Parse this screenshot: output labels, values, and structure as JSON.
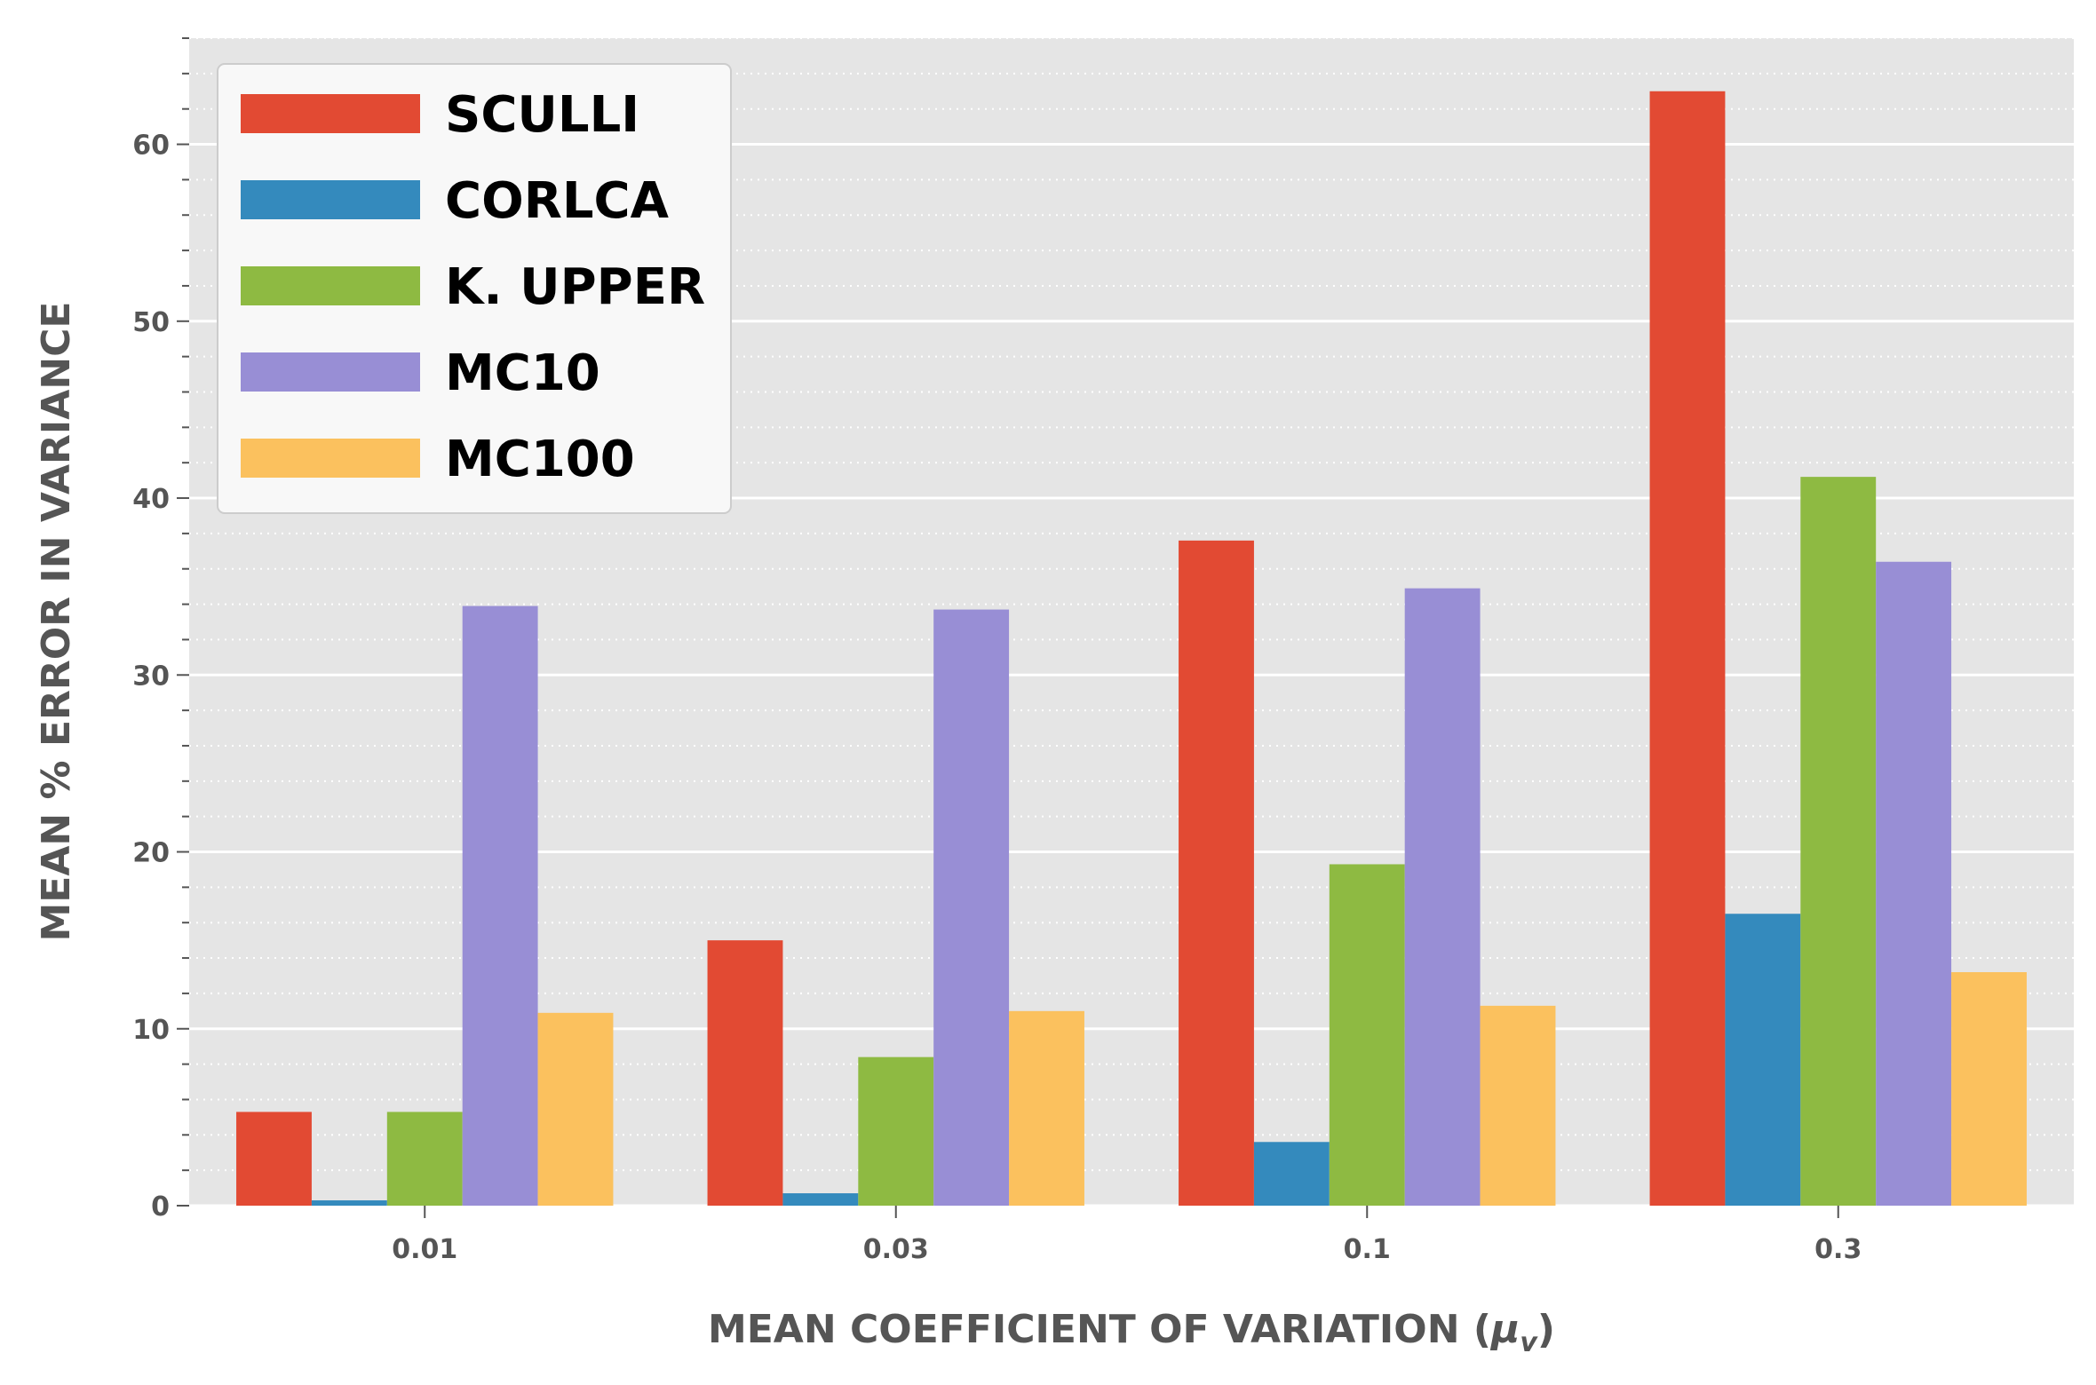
{
  "chart_data": {
    "type": "bar",
    "categories": [
      "0.01",
      "0.03",
      "0.1",
      "0.3"
    ],
    "series": [
      {
        "name": "SCULLI",
        "color": "#E24A33",
        "values": [
          5.3,
          15.0,
          37.6,
          63.0
        ]
      },
      {
        "name": "CORLCA",
        "color": "#348ABD",
        "values": [
          0.3,
          0.7,
          3.6,
          16.5
        ]
      },
      {
        "name": "K. UPPER",
        "color": "#8EBA42",
        "values": [
          5.3,
          8.4,
          19.3,
          41.2
        ]
      },
      {
        "name": "MC10",
        "color": "#988ED5",
        "values": [
          33.9,
          33.7,
          34.9,
          36.4
        ]
      },
      {
        "name": "MC100",
        "color": "#FBC15E",
        "values": [
          10.9,
          11.0,
          11.3,
          13.2
        ]
      }
    ],
    "title": "",
    "xlabel": "MEAN COEFFICIENT OF VARIATION (",
    "xlabel_symbol": "μ",
    "xlabel_subscript": "v",
    "xlabel_close": ")",
    "ylabel": "MEAN % ERROR IN VARIANCE",
    "ylim": [
      0,
      66
    ],
    "yticks": [
      0,
      10,
      20,
      30,
      40,
      50,
      60
    ],
    "grid": true,
    "legend_position": "top-left",
    "background_color": "#E5E5E5"
  }
}
